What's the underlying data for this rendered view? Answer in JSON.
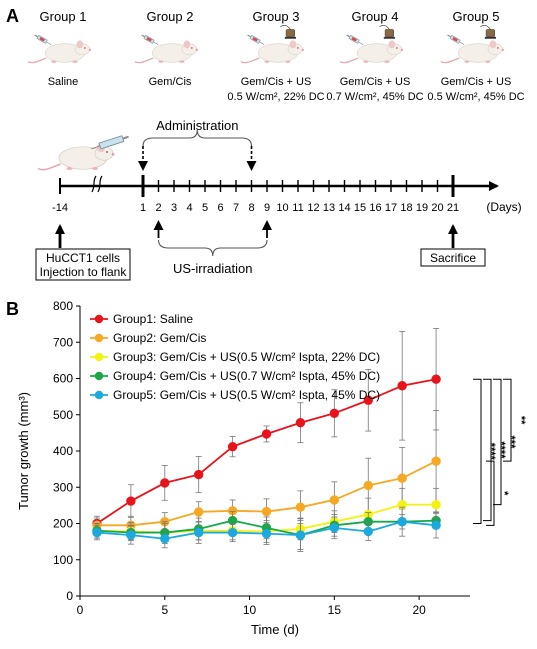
{
  "panel_a": {
    "label": "A",
    "groups": [
      {
        "title": "Group 1",
        "desc1": "Saline",
        "desc2": ""
      },
      {
        "title": "Group 2",
        "desc1": "Gem/Cis",
        "desc2": ""
      },
      {
        "title": "Group 3",
        "desc1": "Gem/Cis + US",
        "desc2": "0.5 W/cm², 22% DC"
      },
      {
        "title": "Group 4",
        "desc1": "Gem/Cis + US",
        "desc2": "0.7 W/cm², 45% DC"
      },
      {
        "title": "Group 5",
        "desc1": "Gem/Cis + US",
        "desc2": "0.5 W/cm², 45% DC"
      }
    ],
    "timeline": {
      "start_tick": "-14",
      "ticks": [
        "1",
        "2",
        "3",
        "4",
        "5",
        "6",
        "7",
        "8",
        "9",
        "10",
        "11",
        "12",
        "13",
        "14",
        "15",
        "16",
        "17",
        "18",
        "19",
        "20",
        "21"
      ],
      "days_label": "(Days)",
      "administration_label": "Administration",
      "administration_days": [
        "1",
        "8"
      ],
      "us_label": "US-irradiation",
      "us_days": [
        "2",
        "9"
      ],
      "injection_text": [
        "HuCCT1 cells",
        "Injection to flank"
      ],
      "sacrifice_text": "Sacrifice"
    }
  },
  "panel_b": {
    "label": "B",
    "significance": [
      "****",
      "****",
      "***",
      "**",
      "*"
    ]
  },
  "chart_data": {
    "type": "line",
    "xlabel": "Time (d)",
    "ylabel": "Tumor growth (mm³)",
    "xlim": [
      0,
      23
    ],
    "ylim": [
      0,
      800
    ],
    "xticks": [
      0,
      5,
      10,
      15,
      20
    ],
    "yticks": [
      0,
      100,
      200,
      300,
      400,
      500,
      600,
      700,
      800
    ],
    "legend_position": "top-left",
    "x": [
      1,
      3,
      5,
      7,
      9,
      11,
      13,
      15,
      17,
      19,
      21
    ],
    "series": [
      {
        "name": "Group1: Saline",
        "color": "#e8141c",
        "values": [
          200,
          262,
          312,
          335,
          412,
          447,
          478,
          504,
          540,
          580,
          598
        ],
        "errors": [
          20,
          45,
          48,
          50,
          28,
          22,
          55,
          65,
          85,
          150,
          140
        ]
      },
      {
        "name": "Group2: Gem/Cis",
        "color": "#f7a823",
        "values": [
          195,
          195,
          205,
          232,
          235,
          233,
          245,
          265,
          305,
          325,
          372
        ],
        "errors": [
          20,
          25,
          25,
          28,
          30,
          35,
          45,
          50,
          75,
          85,
          140
        ]
      },
      {
        "name": "Group3: Gem/Cis + US(0.5 W/cm² Ispta, 22% DC)",
        "color": "#f3f311",
        "values": [
          180,
          178,
          175,
          180,
          180,
          178,
          185,
          205,
          225,
          252,
          252
        ],
        "errors": [
          20,
          25,
          25,
          25,
          25,
          30,
          30,
          30,
          45,
          45,
          45
        ]
      },
      {
        "name": "Group4: Gem/Cis + US(0.7 W/cm² Ispta, 45% DC)",
        "color": "#18a84a",
        "values": [
          180,
          175,
          175,
          185,
          208,
          188,
          168,
          195,
          205,
          205,
          208
        ],
        "errors": [
          20,
          20,
          30,
          30,
          25,
          30,
          40,
          30,
          25,
          20,
          20
        ]
      },
      {
        "name": "Group5: Gem/Cis + US(0.5 W/cm² Ispta, 45% DC)",
        "color": "#1ca9e0",
        "values": [
          175,
          168,
          158,
          175,
          175,
          172,
          168,
          188,
          178,
          205,
          195
        ],
        "errors": [
          20,
          25,
          25,
          30,
          25,
          30,
          45,
          30,
          25,
          40,
          35
        ]
      }
    ]
  }
}
